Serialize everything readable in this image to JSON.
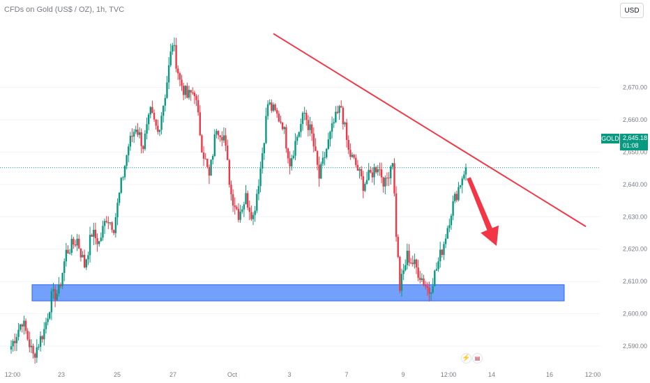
{
  "header": {
    "title": "CFDs on Gold (US$ / OZ), 1h, TVC",
    "currency_button": "USD"
  },
  "symbol_badge": {
    "symbol": "GOLD",
    "price": "2,645.18",
    "countdown": "01:08"
  },
  "events": {
    "icons": [
      "lightning-icon",
      "us-flag-icon"
    ]
  },
  "colors": {
    "up": "#089981",
    "down": "#f23645",
    "trendline": "#f23645",
    "zone": "#5b8ff9",
    "arrow": "#f23645"
  },
  "chart_data": {
    "type": "candlestick",
    "title": "CFDs on Gold (US$ / OZ), 1h, TVC",
    "ylim": [
      2584,
      2697
    ],
    "y_tick_labels": [
      "2,590.00",
      "2,600.00",
      "2,610.00",
      "2,620.00",
      "2,630.00",
      "2,640.00",
      "2,650.00",
      "2,660.00",
      "2,670.00"
    ],
    "y_ticks": [
      2590,
      2600,
      2610,
      2620,
      2630,
      2640,
      2650,
      2660,
      2670
    ],
    "x_tick_labels": [
      "12:00",
      "23",
      "25",
      "27",
      "Oct",
      "3",
      "7",
      "9",
      "12:00",
      "14",
      "16",
      "12:00"
    ],
    "last_price": 2645.18,
    "anchors": [
      [
        0,
        2590
      ],
      [
        3,
        2598
      ],
      [
        6,
        2587
      ],
      [
        9,
        2595
      ],
      [
        11,
        2605
      ],
      [
        13,
        2607
      ],
      [
        15,
        2619
      ],
      [
        18,
        2623
      ],
      [
        20,
        2615
      ],
      [
        22,
        2625
      ],
      [
        24,
        2622
      ],
      [
        26,
        2630
      ],
      [
        28,
        2627
      ],
      [
        30,
        2640
      ],
      [
        32,
        2652
      ],
      [
        34,
        2658
      ],
      [
        36,
        2652
      ],
      [
        38,
        2662
      ],
      [
        40,
        2656
      ],
      [
        42,
        2668
      ],
      [
        44,
        2684
      ],
      [
        46,
        2672
      ],
      [
        48,
        2667
      ],
      [
        50,
        2669
      ],
      [
        52,
        2652
      ],
      [
        54,
        2642
      ],
      [
        56,
        2658
      ],
      [
        58,
        2655
      ],
      [
        60,
        2637
      ],
      [
        62,
        2631
      ],
      [
        64,
        2636
      ],
      [
        66,
        2630
      ],
      [
        68,
        2645
      ],
      [
        70,
        2665
      ],
      [
        72,
        2662
      ],
      [
        74,
        2659
      ],
      [
        76,
        2647
      ],
      [
        78,
        2655
      ],
      [
        80,
        2662
      ],
      [
        82,
        2655
      ],
      [
        84,
        2642
      ],
      [
        86,
        2651
      ],
      [
        88,
        2659
      ],
      [
        90,
        2664
      ],
      [
        92,
        2650
      ],
      [
        94,
        2646
      ],
      [
        96,
        2640
      ],
      [
        98,
        2643
      ],
      [
        100,
        2646
      ],
      [
        102,
        2640
      ],
      [
        104,
        2648
      ],
      [
        105,
        2625
      ],
      [
        106,
        2608
      ],
      [
        108,
        2618
      ],
      [
        110,
        2615
      ],
      [
        112,
        2611
      ],
      [
        114,
        2607
      ],
      [
        116,
        2614
      ],
      [
        118,
        2622
      ],
      [
        120,
        2632
      ],
      [
        122,
        2639
      ],
      [
        124,
        2646
      ]
    ],
    "trendline": [
      [
        2687.5,
        2686.6
      ],
      [
        2638.6,
        2627.0
      ]
    ],
    "support_zone": [
      2604.0,
      2609.0
    ],
    "arrow": {
      "from": 2642,
      "to": 2621
    },
    "overlays": [
      "descending trendline",
      "support zone",
      "projected down arrow"
    ]
  }
}
